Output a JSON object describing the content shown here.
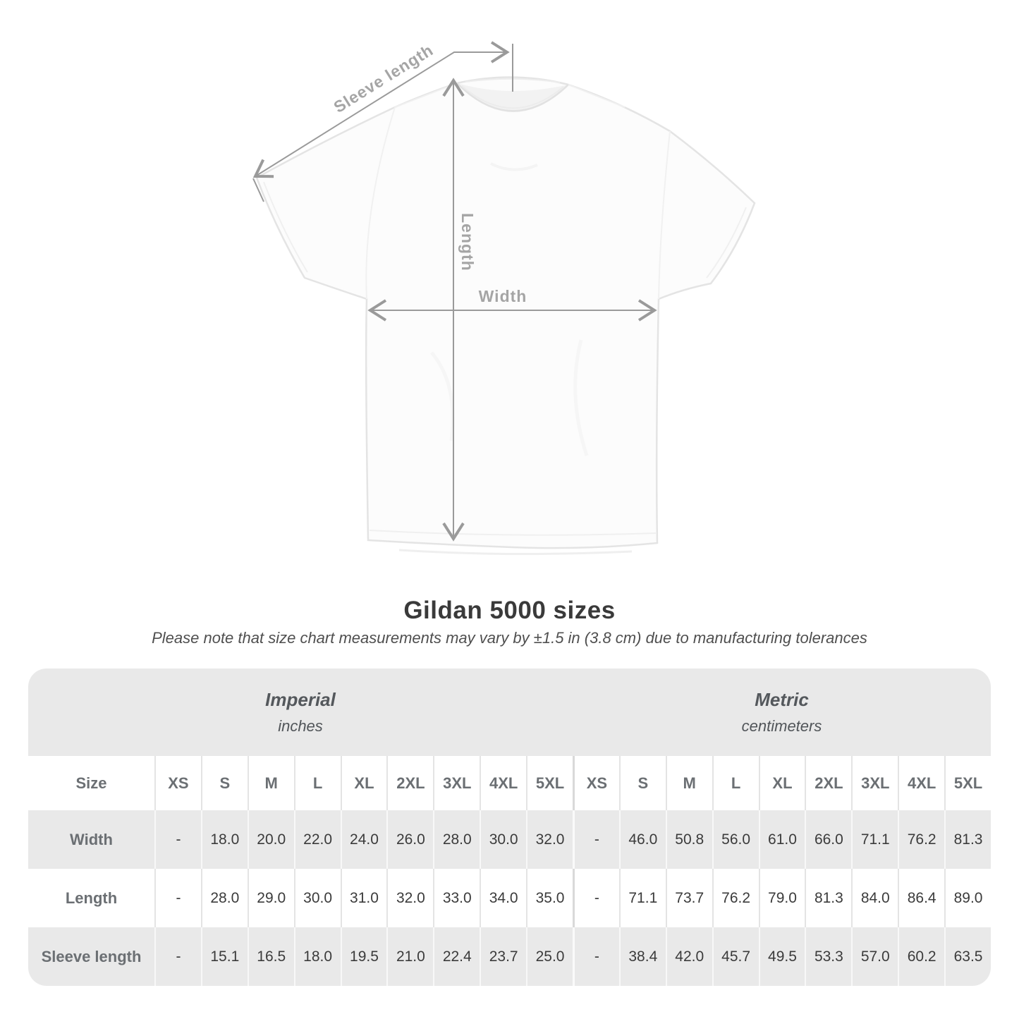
{
  "diagram": {
    "sleeve_length_label": "Sleeve length",
    "length_label": "Length",
    "width_label": "Width",
    "line_color": "#9a9a9a",
    "label_color": "#a5a5a5"
  },
  "heading": {
    "title": "Gildan 5000 sizes",
    "subtitle": "Please note that size chart measurements may vary by ±1.5 in (3.8 cm) due to manufacturing tolerances"
  },
  "table": {
    "size_header": "Size",
    "groups": [
      {
        "name": "Imperial",
        "unit": "inches"
      },
      {
        "name": "Metric",
        "unit": "centimeters"
      }
    ],
    "sizes": [
      "XS",
      "S",
      "M",
      "L",
      "XL",
      "2XL",
      "3XL",
      "4XL",
      "5XL"
    ],
    "rows": [
      {
        "label": "Width",
        "imperial": [
          "-",
          "18.0",
          "20.0",
          "22.0",
          "24.0",
          "26.0",
          "28.0",
          "30.0",
          "32.0"
        ],
        "metric": [
          "-",
          "46.0",
          "50.8",
          "56.0",
          "61.0",
          "66.0",
          "71.1",
          "76.2",
          "81.3"
        ]
      },
      {
        "label": "Length",
        "imperial": [
          "-",
          "28.0",
          "29.0",
          "30.0",
          "31.0",
          "32.0",
          "33.0",
          "34.0",
          "35.0"
        ],
        "metric": [
          "-",
          "71.1",
          "73.7",
          "76.2",
          "79.0",
          "81.3",
          "84.0",
          "86.4",
          "89.0"
        ]
      },
      {
        "label": "Sleeve length",
        "imperial": [
          "-",
          "15.1",
          "16.5",
          "18.0",
          "19.5",
          "21.0",
          "22.4",
          "23.7",
          "25.0"
        ],
        "metric": [
          "-",
          "38.4",
          "42.0",
          "45.7",
          "49.5",
          "53.3",
          "57.0",
          "60.2",
          "63.5"
        ]
      }
    ],
    "colors": {
      "band_bg": "#e9e9e9",
      "alt_row_bg": "#e9e9e9",
      "header_text": "#6b6f73",
      "value_text": "#3b3b3b"
    }
  }
}
